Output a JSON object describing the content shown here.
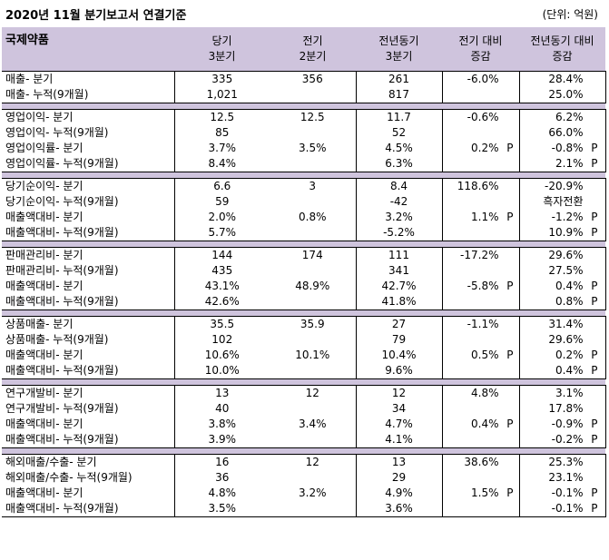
{
  "title": "2020년 11월 분기보고서 연결기준",
  "unit": "(단위: 억원)",
  "header": {
    "company": "국제약품",
    "cols": [
      [
        "당기",
        "3분기"
      ],
      [
        "전기",
        "2분기"
      ],
      [
        "전년동기",
        "3분기"
      ],
      [
        "전기 대비",
        "증감"
      ],
      [
        "전년동기 대비",
        "증감"
      ]
    ]
  },
  "groups": [
    {
      "rows": [
        {
          "label": "매출- 분기",
          "cur": "335",
          "prev": "356",
          "yoy": "261",
          "qoq": "-6.0%",
          "qoq_p": "",
          "yoyc": "28.4%",
          "yoyc_p": ""
        },
        {
          "label": "매출- 누적(9개월)",
          "cur": "1,021",
          "prev": "",
          "yoy": "817",
          "qoq": "",
          "qoq_p": "",
          "yoyc": "25.0%",
          "yoyc_p": ""
        }
      ]
    },
    {
      "rows": [
        {
          "label": "영업이익- 분기",
          "cur": "12.5",
          "prev": "12.5",
          "yoy": "11.7",
          "qoq": "-0.6%",
          "qoq_p": "",
          "yoyc": "6.2%",
          "yoyc_p": ""
        },
        {
          "label": "영업이익- 누적(9개월)",
          "cur": "85",
          "prev": "",
          "yoy": "52",
          "qoq": "",
          "qoq_p": "",
          "yoyc": "66.0%",
          "yoyc_p": ""
        },
        {
          "label": "영업이익률- 분기",
          "cur": "3.7%",
          "prev": "3.5%",
          "yoy": "4.5%",
          "qoq": "0.2%",
          "qoq_p": "P",
          "yoyc": "-0.8%",
          "yoyc_p": "P"
        },
        {
          "label": "영업이익률- 누적(9개월)",
          "cur": "8.4%",
          "prev": "",
          "yoy": "6.3%",
          "qoq": "",
          "qoq_p": "",
          "yoyc": "2.1%",
          "yoyc_p": "P"
        }
      ]
    },
    {
      "rows": [
        {
          "label": "당기순이익- 분기",
          "cur": "6.6",
          "prev": "3",
          "yoy": "8.4",
          "qoq": "118.6%",
          "qoq_p": "",
          "yoyc": "-20.9%",
          "yoyc_p": ""
        },
        {
          "label": "당기순이익- 누적(9개월)",
          "cur": "59",
          "prev": "",
          "yoy": "-42",
          "qoq": "",
          "qoq_p": "",
          "yoyc": "흑자전환",
          "yoyc_p": ""
        },
        {
          "label": "매출액대비- 분기",
          "cur": "2.0%",
          "prev": "0.8%",
          "yoy": "3.2%",
          "qoq": "1.1%",
          "qoq_p": "P",
          "yoyc": "-1.2%",
          "yoyc_p": "P"
        },
        {
          "label": "매출액대비- 누적(9개월)",
          "cur": "5.7%",
          "prev": "",
          "yoy": "-5.2%",
          "qoq": "",
          "qoq_p": "",
          "yoyc": "10.9%",
          "yoyc_p": "P"
        }
      ]
    },
    {
      "rows": [
        {
          "label": "판매관리비- 분기",
          "cur": "144",
          "prev": "174",
          "yoy": "111",
          "qoq": "-17.2%",
          "qoq_p": "",
          "yoyc": "29.6%",
          "yoyc_p": ""
        },
        {
          "label": "판매관리비- 누적(9개월)",
          "cur": "435",
          "prev": "",
          "yoy": "341",
          "qoq": "",
          "qoq_p": "",
          "yoyc": "27.5%",
          "yoyc_p": ""
        },
        {
          "label": "매출액대비- 분기",
          "cur": "43.1%",
          "prev": "48.9%",
          "yoy": "42.7%",
          "qoq": "-5.8%",
          "qoq_p": "P",
          "yoyc": "0.4%",
          "yoyc_p": "P"
        },
        {
          "label": "매출액대비- 누적(9개월)",
          "cur": "42.6%",
          "prev": "",
          "yoy": "41.8%",
          "qoq": "",
          "qoq_p": "",
          "yoyc": "0.8%",
          "yoyc_p": "P"
        }
      ]
    },
    {
      "rows": [
        {
          "label": "상품매출- 분기",
          "cur": "35.5",
          "prev": "35.9",
          "yoy": "27",
          "qoq": "-1.1%",
          "qoq_p": "",
          "yoyc": "31.4%",
          "yoyc_p": ""
        },
        {
          "label": "상품매출- 누적(9개월)",
          "cur": "102",
          "prev": "",
          "yoy": "79",
          "qoq": "",
          "qoq_p": "",
          "yoyc": "29.6%",
          "yoyc_p": ""
        },
        {
          "label": "매출액대비- 분기",
          "cur": "10.6%",
          "prev": "10.1%",
          "yoy": "10.4%",
          "qoq": "0.5%",
          "qoq_p": "P",
          "yoyc": "0.2%",
          "yoyc_p": "P"
        },
        {
          "label": "매출액대비- 누적(9개월)",
          "cur": "10.0%",
          "prev": "",
          "yoy": "9.6%",
          "qoq": "",
          "qoq_p": "",
          "yoyc": "0.4%",
          "yoyc_p": "P"
        }
      ]
    },
    {
      "rows": [
        {
          "label": "연구개발비- 분기",
          "cur": "13",
          "prev": "12",
          "yoy": "12",
          "qoq": "4.8%",
          "qoq_p": "",
          "yoyc": "3.1%",
          "yoyc_p": ""
        },
        {
          "label": "연구개발비- 누적(9개월)",
          "cur": "40",
          "prev": "",
          "yoy": "34",
          "qoq": "",
          "qoq_p": "",
          "yoyc": "17.8%",
          "yoyc_p": ""
        },
        {
          "label": "매출액대비- 분기",
          "cur": "3.8%",
          "prev": "3.4%",
          "yoy": "4.7%",
          "qoq": "0.4%",
          "qoq_p": "P",
          "yoyc": "-0.9%",
          "yoyc_p": "P"
        },
        {
          "label": "매출액대비- 누적(9개월)",
          "cur": "3.9%",
          "prev": "",
          "yoy": "4.1%",
          "qoq": "",
          "qoq_p": "",
          "yoyc": "-0.2%",
          "yoyc_p": "P"
        }
      ]
    },
    {
      "rows": [
        {
          "label": "해외매출/수출- 분기",
          "cur": "16",
          "prev": "12",
          "yoy": "13",
          "qoq": "38.6%",
          "qoq_p": "",
          "yoyc": "25.3%",
          "yoyc_p": ""
        },
        {
          "label": "해외매출/수출- 누적(9개월)",
          "cur": "36",
          "prev": "",
          "yoy": "29",
          "qoq": "",
          "qoq_p": "",
          "yoyc": "23.1%",
          "yoyc_p": ""
        },
        {
          "label": "매출액대비- 분기",
          "cur": "4.8%",
          "prev": "3.2%",
          "yoy": "4.9%",
          "qoq": "1.5%",
          "qoq_p": "P",
          "yoyc": "-0.1%",
          "yoyc_p": "P"
        },
        {
          "label": "매출액대비- 누적(9개월)",
          "cur": "3.5%",
          "prev": "",
          "yoy": "3.6%",
          "qoq": "",
          "qoq_p": "",
          "yoyc": "-0.1%",
          "yoyc_p": "P"
        }
      ]
    }
  ]
}
